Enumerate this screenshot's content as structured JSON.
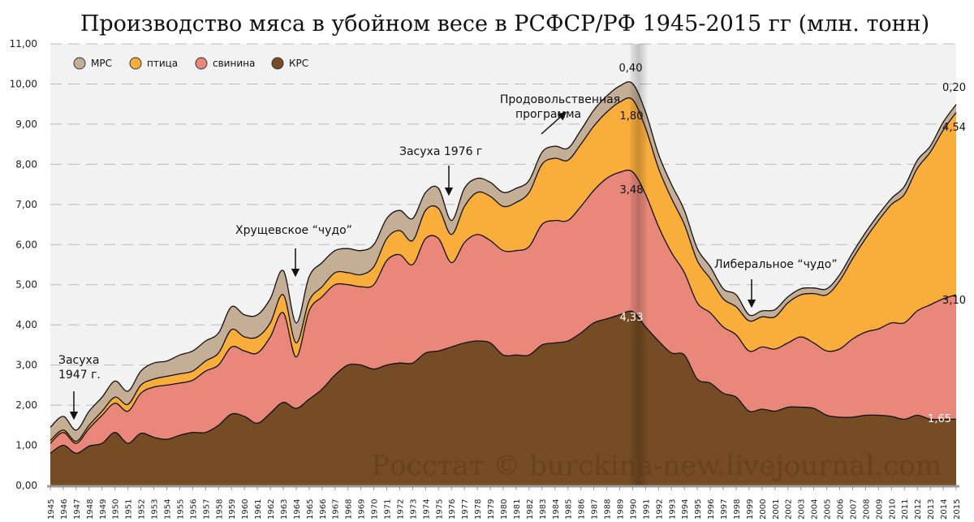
{
  "chart_data": {
    "type": "area",
    "stacked": true,
    "title": "Производство мяса в убойном весе в РСФСР/РФ 1945-2015 гг (млн. тонн)",
    "xlabel": "",
    "ylabel": "",
    "ylim": [
      0,
      11
    ],
    "yticks": [
      "0,00",
      "1,00",
      "2,00",
      "3,00",
      "4,00",
      "5,00",
      "6,00",
      "7,00",
      "8,00",
      "9,00",
      "10,00",
      "11,00"
    ],
    "x": [
      1945,
      1946,
      1947,
      1948,
      1949,
      1950,
      1951,
      1952,
      1953,
      1954,
      1955,
      1956,
      1957,
      1958,
      1959,
      1960,
      1961,
      1962,
      1963,
      1964,
      1965,
      1966,
      1967,
      1968,
      1969,
      1970,
      1971,
      1972,
      1973,
      1974,
      1975,
      1976,
      1977,
      1978,
      1979,
      1980,
      1981,
      1982,
      1983,
      1984,
      1985,
      1986,
      1987,
      1988,
      1989,
      1990,
      1991,
      1992,
      1993,
      1994,
      1995,
      1996,
      1997,
      1998,
      1999,
      2000,
      2001,
      2002,
      2003,
      2004,
      2005,
      2006,
      2007,
      2008,
      2009,
      2010,
      2011,
      2012,
      2013,
      2014,
      2015
    ],
    "grid": true,
    "legend_position": "top-left",
    "series": [
      {
        "name": "КРС",
        "color": "#754C24",
        "values": [
          0.8,
          1.0,
          0.8,
          0.98,
          1.05,
          1.32,
          1.05,
          1.3,
          1.2,
          1.15,
          1.25,
          1.32,
          1.32,
          1.5,
          1.78,
          1.72,
          1.55,
          1.8,
          2.07,
          1.92,
          2.15,
          2.4,
          2.75,
          3.0,
          3.0,
          2.9,
          3.0,
          3.05,
          3.05,
          3.3,
          3.35,
          3.45,
          3.55,
          3.6,
          3.55,
          3.25,
          3.25,
          3.25,
          3.5,
          3.55,
          3.6,
          3.8,
          4.05,
          4.15,
          4.25,
          4.33,
          3.95,
          3.6,
          3.3,
          3.25,
          2.65,
          2.55,
          2.3,
          2.2,
          1.85,
          1.9,
          1.85,
          1.95,
          1.95,
          1.92,
          1.75,
          1.7,
          1.7,
          1.75,
          1.75,
          1.72,
          1.65,
          1.75,
          1.65,
          1.65,
          1.65
        ]
      },
      {
        "name": "свинина",
        "color": "#E8877A",
        "values": [
          0.25,
          0.32,
          0.25,
          0.44,
          0.7,
          0.73,
          0.8,
          1.0,
          1.25,
          1.35,
          1.3,
          1.3,
          1.53,
          1.5,
          1.67,
          1.63,
          1.75,
          1.9,
          2.23,
          1.28,
          2.2,
          2.3,
          2.25,
          2.0,
          1.95,
          2.1,
          2.6,
          2.7,
          2.45,
          2.85,
          2.8,
          2.1,
          2.5,
          2.65,
          2.55,
          2.6,
          2.6,
          2.7,
          3.0,
          3.05,
          3.0,
          3.15,
          3.3,
          3.5,
          3.55,
          3.48,
          3.3,
          2.85,
          2.5,
          2.05,
          1.9,
          1.75,
          1.65,
          1.55,
          1.5,
          1.55,
          1.55,
          1.6,
          1.75,
          1.63,
          1.6,
          1.7,
          1.95,
          2.07,
          2.15,
          2.33,
          2.4,
          2.6,
          2.85,
          3.0,
          3.1
        ]
      },
      {
        "name": "птица",
        "color": "#F9AE3B",
        "values": [
          0.07,
          0.06,
          0.05,
          0.08,
          0.1,
          0.15,
          0.17,
          0.2,
          0.2,
          0.22,
          0.23,
          0.23,
          0.25,
          0.3,
          0.43,
          0.35,
          0.4,
          0.35,
          0.45,
          0.35,
          0.25,
          0.25,
          0.3,
          0.3,
          0.3,
          0.45,
          0.55,
          0.6,
          0.6,
          0.7,
          0.75,
          0.7,
          0.9,
          1.05,
          1.1,
          1.1,
          1.2,
          1.35,
          1.5,
          1.55,
          1.5,
          1.55,
          1.6,
          1.65,
          1.75,
          1.8,
          1.65,
          1.45,
          1.35,
          1.2,
          1.05,
          0.85,
          0.7,
          0.7,
          0.75,
          0.75,
          0.8,
          1.0,
          1.05,
          1.23,
          1.4,
          1.7,
          2.0,
          2.33,
          2.7,
          2.95,
          3.2,
          3.55,
          3.8,
          4.2,
          4.54
        ]
      },
      {
        "name": "МРС",
        "color": "#C4AE96",
        "values": [
          0.33,
          0.34,
          0.28,
          0.35,
          0.35,
          0.4,
          0.33,
          0.35,
          0.4,
          0.38,
          0.47,
          0.5,
          0.5,
          0.5,
          0.57,
          0.55,
          0.55,
          0.6,
          0.6,
          0.5,
          0.6,
          0.6,
          0.55,
          0.6,
          0.6,
          0.55,
          0.5,
          0.5,
          0.55,
          0.45,
          0.5,
          0.35,
          0.45,
          0.35,
          0.35,
          0.35,
          0.35,
          0.3,
          0.3,
          0.3,
          0.3,
          0.35,
          0.4,
          0.4,
          0.4,
          0.4,
          0.4,
          0.35,
          0.35,
          0.35,
          0.3,
          0.3,
          0.25,
          0.3,
          0.15,
          0.15,
          0.18,
          0.15,
          0.15,
          0.14,
          0.15,
          0.15,
          0.15,
          0.15,
          0.15,
          0.15,
          0.2,
          0.2,
          0.15,
          0.2,
          0.2
        ]
      }
    ],
    "legend_order": [
      "МРС",
      "птица",
      "свинина",
      "КРС"
    ],
    "data_labels": {
      "1990": {
        "mrs": "0,40",
        "poultry": "1,80",
        "pork": "3,48",
        "krs": "4,33"
      },
      "2015": {
        "mrs": "0,20",
        "poultry": "4,54",
        "pork": "3,10",
        "krs": "1,65"
      }
    },
    "annotations": {
      "drought_1947": [
        "Засуха",
        "1947 г."
      ],
      "khrushchev": "Хрущевское “чудо”",
      "drought_1976": "Засуха 1976 г",
      "food_program": [
        "Продовольственная",
        "программа"
      ],
      "liberal": "Либеральное “чудо”"
    },
    "highlight_band": [
      1990,
      1991
    ],
    "watermark": "Росстат © burckina-new.livejournal.com",
    "colors": {
      "plot_bg": "#F2F2F2",
      "grid": "#BBBBBB"
    }
  }
}
